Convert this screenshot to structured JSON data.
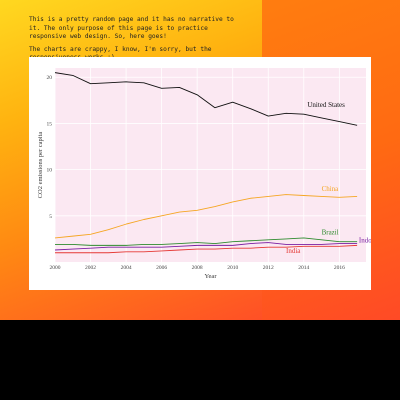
{
  "intro": {
    "paragraph1": "This is a pretty random page and it has no narrative to it. The only purpose of this page is to practice responsive web design. So, here goes!",
    "paragraph2": "The charts are crappy, I know, I'm sorry, but the responsiveness works :)"
  },
  "colors": {
    "plot_background": "#fbe8f2",
    "United States": "#111111",
    "China": "#f5a623",
    "Brazil": "#2e8b2e",
    "Indonesia": "#7b1fa2",
    "India": "#e53935"
  },
  "chart_data": {
    "type": "line",
    "title": "",
    "xlabel": "Year",
    "ylabel": "CO2 emissions per capita",
    "xlim": [
      2000,
      2017.5
    ],
    "ylim": [
      0,
      21
    ],
    "x_ticks": [
      "2000",
      "2002",
      "2004",
      "2006",
      "2008",
      "2010",
      "2012",
      "2014",
      "2016"
    ],
    "y_ticks": [
      "5",
      "10",
      "15",
      "20"
    ],
    "grid": true,
    "legend": "inline-labels",
    "x": [
      2000,
      2001,
      2002,
      2003,
      2004,
      2005,
      2006,
      2007,
      2008,
      2009,
      2010,
      2011,
      2012,
      2013,
      2014,
      2015,
      2016,
      2017
    ],
    "series": [
      {
        "name": "United States",
        "values": [
          20.5,
          20.2,
          19.3,
          19.4,
          19.5,
          19.4,
          18.8,
          18.9,
          18.1,
          16.7,
          17.3,
          16.6,
          15.8,
          16.1,
          16.0,
          15.6,
          15.2,
          14.8
        ]
      },
      {
        "name": "China",
        "values": [
          2.6,
          2.8,
          3.0,
          3.5,
          4.1,
          4.6,
          5.0,
          5.4,
          5.6,
          6.0,
          6.5,
          6.9,
          7.1,
          7.3,
          7.2,
          7.1,
          7.0,
          7.1
        ]
      },
      {
        "name": "Brazil",
        "values": [
          1.9,
          1.9,
          1.8,
          1.8,
          1.8,
          1.9,
          1.9,
          2.0,
          2.1,
          2.0,
          2.2,
          2.3,
          2.4,
          2.5,
          2.6,
          2.4,
          2.2,
          2.2
        ]
      },
      {
        "name": "Indonesia",
        "values": [
          1.3,
          1.4,
          1.5,
          1.6,
          1.6,
          1.6,
          1.6,
          1.7,
          1.8,
          1.8,
          1.8,
          2.0,
          2.1,
          1.9,
          1.9,
          1.9,
          2.0,
          2.0
        ]
      },
      {
        "name": "India",
        "values": [
          1.0,
          1.0,
          1.0,
          1.0,
          1.1,
          1.1,
          1.2,
          1.3,
          1.4,
          1.4,
          1.5,
          1.5,
          1.6,
          1.6,
          1.7,
          1.7,
          1.7,
          1.8
        ]
      }
    ],
    "series_labels": [
      {
        "name": "United States",
        "x": 2014.2,
        "y": 16.8
      },
      {
        "name": "China",
        "x": 2015.0,
        "y": 7.7
      },
      {
        "name": "Brazil",
        "x": 2015.0,
        "y": 3.0
      },
      {
        "name": "Indonesia",
        "x": 2017.1,
        "y": 2.1
      },
      {
        "name": "India",
        "x": 2013.0,
        "y": 1.0
      }
    ]
  }
}
